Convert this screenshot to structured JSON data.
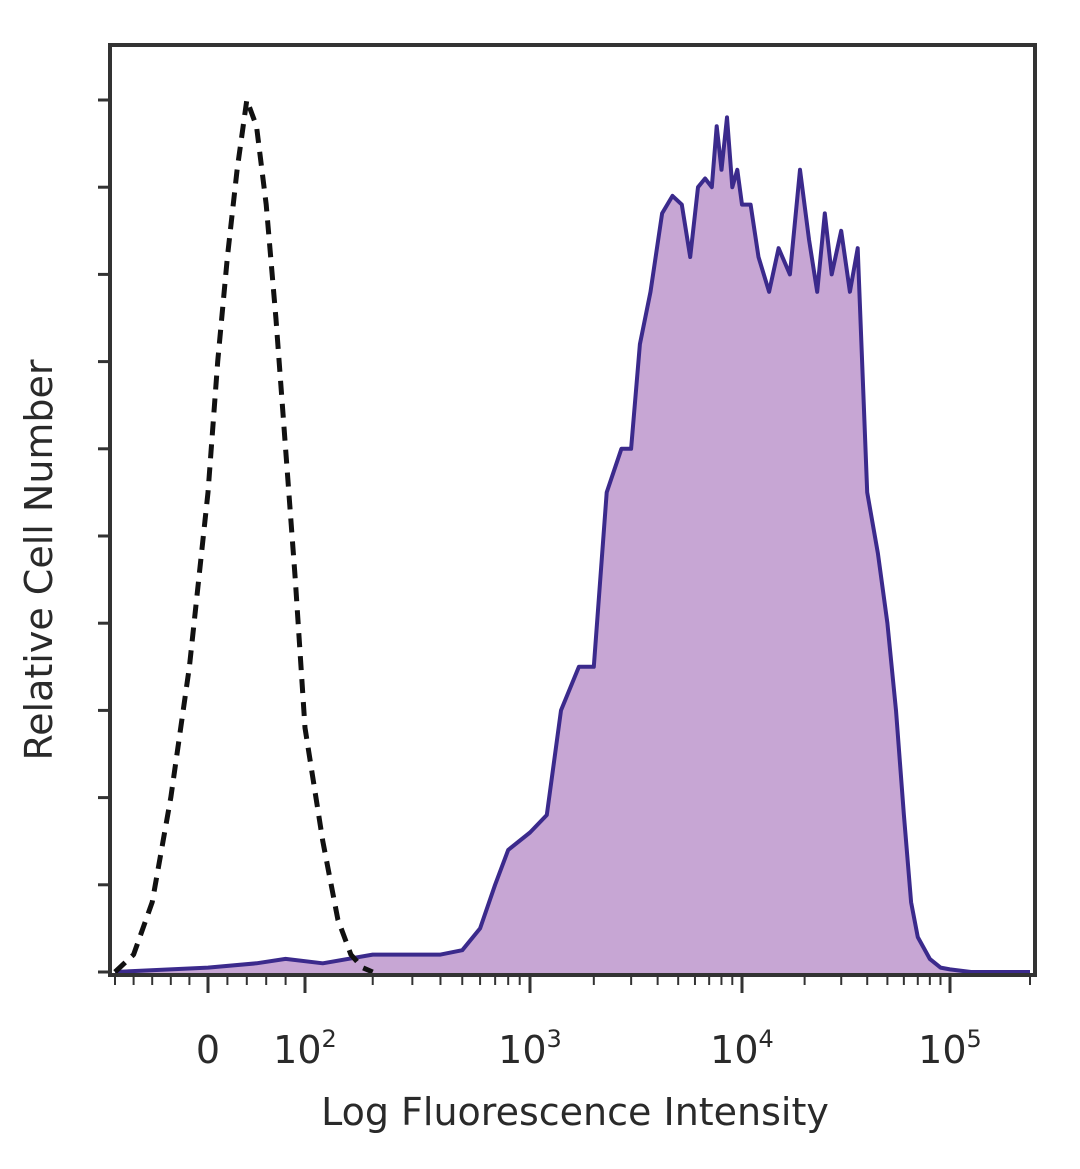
{
  "chart_data": {
    "type": "area",
    "title": "",
    "xlabel": "Log Fluorescence Intensity",
    "ylabel": "Relative Cell Number",
    "x_scale": "biexponential",
    "xlim": [
      -100,
      200000
    ],
    "ylim": [
      0,
      100
    ],
    "x_tick_labels": [
      {
        "value": 0,
        "base": "0",
        "exp": ""
      },
      {
        "value": 100,
        "base": "10",
        "exp": "2"
      },
      {
        "value": 1000,
        "base": "10",
        "exp": "3"
      },
      {
        "value": 10000,
        "base": "10",
        "exp": "4"
      },
      {
        "value": 100000,
        "base": "10",
        "exp": "5"
      }
    ],
    "grid": false,
    "colors": {
      "filled_fill": "#c7a6d4",
      "filled_line": "#3b2a8c",
      "control_line": "#111111",
      "frame": "#333333"
    },
    "series": [
      {
        "style": "dashed-outline",
        "x": [
          -100,
          -80,
          -60,
          -40,
          -20,
          0,
          10,
          20,
          30,
          40,
          50,
          60,
          70,
          80,
          90,
          100,
          120,
          140,
          160,
          180,
          200
        ],
        "y": [
          0,
          2,
          8,
          20,
          35,
          55,
          70,
          82,
          92,
          100,
          97,
          88,
          75,
          60,
          45,
          28,
          15,
          6,
          2,
          0.5,
          0
        ]
      },
      {
        "style": "filled",
        "x": [
          -100,
          0,
          50,
          80,
          120,
          200,
          300,
          400,
          500,
          600,
          700,
          800,
          1000,
          1200,
          1400,
          1700,
          2000,
          2300,
          2700,
          3000,
          3300,
          3700,
          4200,
          4700,
          5200,
          5700,
          6200,
          6700,
          7200,
          7600,
          8000,
          8500,
          9000,
          9500,
          10000,
          11000,
          12000,
          13500,
          15000,
          17000,
          19000,
          21000,
          23000,
          25000,
          27000,
          30000,
          33000,
          36000,
          40000,
          45000,
          50000,
          55000,
          60000,
          65000,
          70000,
          80000,
          90000,
          100000,
          120000,
          150000,
          200000
        ],
        "y": [
          0,
          0.5,
          1,
          1.5,
          1,
          2,
          2,
          2,
          2.5,
          5,
          10,
          14,
          16,
          18,
          30,
          35,
          35,
          55,
          60,
          60,
          72,
          78,
          87,
          89,
          88,
          82,
          90,
          91,
          90,
          97,
          92,
          98,
          90,
          92,
          88,
          88,
          82,
          78,
          83,
          80,
          92,
          84,
          78,
          87,
          80,
          85,
          78,
          83,
          55,
          48,
          40,
          30,
          18,
          8,
          4,
          1.5,
          0.5,
          0.3,
          0,
          0,
          0
        ]
      }
    ]
  }
}
